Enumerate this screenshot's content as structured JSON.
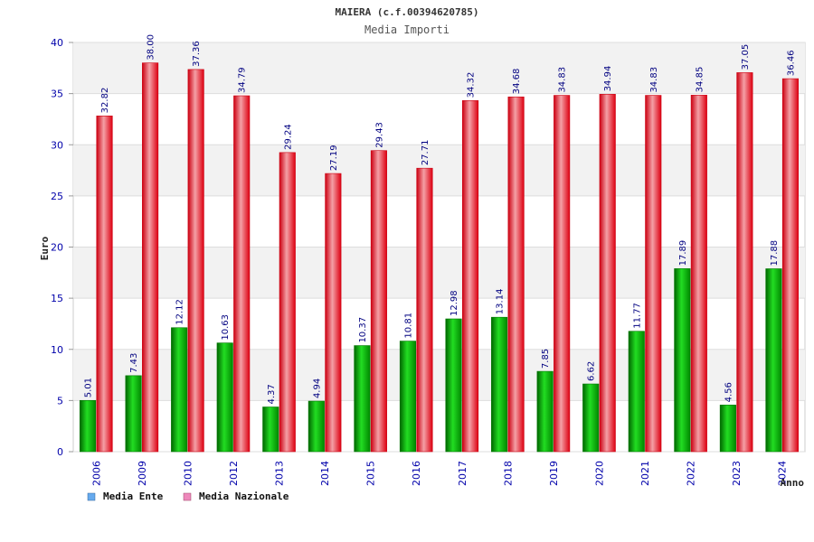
{
  "chart_data": {
    "type": "bar",
    "title": "MAIERA (c.f.00394620785)",
    "subtitle": "Media Importi",
    "xlabel": "Anno",
    "ylabel": "Euro",
    "ylim": [
      0,
      40
    ],
    "yticks": [
      0,
      5,
      10,
      15,
      20,
      25,
      30,
      35,
      40
    ],
    "grid": true,
    "legend_position": "bottom-left",
    "categories": [
      "2006",
      "2009",
      "2010",
      "2012",
      "2013",
      "2014",
      "2015",
      "2016",
      "2017",
      "2018",
      "2019",
      "2020",
      "2021",
      "2022",
      "2023",
      "2024"
    ],
    "series": [
      {
        "name": "Media Ente",
        "color": "#00aa00",
        "legend_color": "#66aaee",
        "values": [
          5.01,
          7.43,
          12.12,
          10.63,
          4.37,
          4.94,
          10.37,
          10.81,
          12.98,
          13.14,
          7.85,
          6.62,
          11.77,
          17.89,
          4.56,
          17.88
        ],
        "labels": [
          "5.01",
          "7.43",
          "12.12",
          "10.63",
          "4.37",
          "4.94",
          "10.37",
          "10.81",
          "12.98",
          "13.14",
          "7.85",
          "6.62",
          "11.77",
          "17.89",
          "4.56",
          "17.88"
        ]
      },
      {
        "name": "Media Nazionale",
        "color": "#ee1122",
        "legend_color": "#ee88bb",
        "values": [
          32.82,
          38.0,
          37.36,
          34.79,
          29.24,
          27.19,
          29.43,
          27.71,
          34.32,
          34.68,
          34.83,
          34.94,
          34.83,
          34.85,
          37.05,
          36.46
        ],
        "labels": [
          "32.82",
          "38.00",
          "37.36",
          "34.79",
          "29.24",
          "27.19",
          "29.43",
          "27.71",
          "34.32",
          "34.68",
          "34.83",
          "34.94",
          "34.83",
          "34.85",
          "37.05",
          "36.46"
        ]
      }
    ]
  }
}
